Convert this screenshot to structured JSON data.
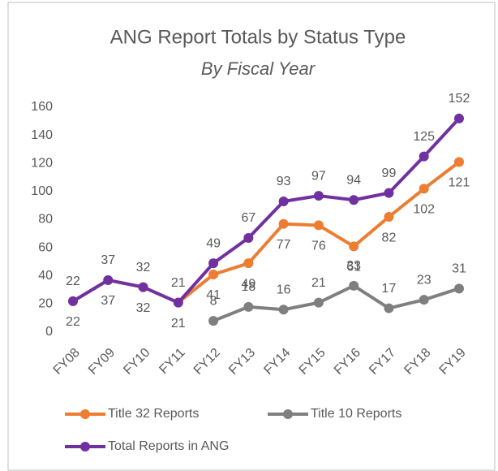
{
  "chart_data": {
    "type": "line",
    "title": "ANG Report Totals by Status Type",
    "subtitle": "By Fiscal Year",
    "categories": [
      "FY08",
      "FY09",
      "FY10",
      "FY11",
      "FY12",
      "FY13",
      "FY14",
      "FY15",
      "FY16",
      "FY17",
      "FY18",
      "FY19"
    ],
    "series": [
      {
        "name": "Title 32 Reports",
        "color": "#ED7D31",
        "label_position": "below",
        "values": [
          22,
          37,
          32,
          21,
          41,
          49,
          77,
          76,
          61,
          82,
          102,
          121
        ]
      },
      {
        "name": "Title 10 Reports",
        "color": "#7F7F7F",
        "label_position": "above",
        "values": [
          null,
          null,
          null,
          null,
          8,
          18,
          16,
          21,
          33,
          17,
          23,
          31
        ]
      },
      {
        "name": "Total Reports in ANG",
        "color": "#7030A0",
        "label_position": "above",
        "values": [
          22,
          37,
          32,
          21,
          49,
          67,
          93,
          97,
          94,
          99,
          125,
          152
        ]
      }
    ],
    "ylim": [
      0,
      160
    ],
    "yticks": [
      0,
      20,
      40,
      60,
      80,
      100,
      120,
      140,
      160
    ],
    "grid": false,
    "legend": "bottom"
  }
}
